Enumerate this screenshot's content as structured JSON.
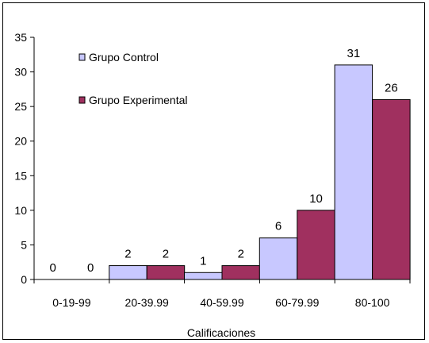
{
  "chart_data": {
    "type": "bar",
    "categories": [
      "0-19-99",
      "20-39.99",
      "40-59.99",
      "60-79.99",
      "80-100"
    ],
    "series": [
      {
        "name": "Grupo Control",
        "values": [
          0,
          2,
          1,
          6,
          31
        ],
        "color": "#c8c8ff"
      },
      {
        "name": "Grupo Experimental",
        "values": [
          0,
          2,
          2,
          10,
          26
        ],
        "color": "#a0305f"
      }
    ],
    "xlabel": "Calificaciones",
    "ylabel": "",
    "ylim": [
      0,
      35
    ],
    "yticks": [
      0,
      5,
      10,
      15,
      20,
      25,
      30,
      35
    ],
    "grid": false,
    "legend": "top-left inside",
    "data_labels": true
  }
}
